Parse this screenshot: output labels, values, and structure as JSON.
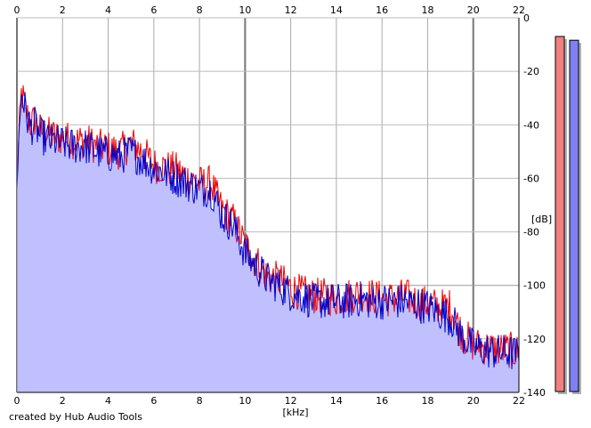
{
  "app": {
    "credit": "created by Hub Audio Tools"
  },
  "colors": {
    "left_channel": "#ee0000",
    "right_channel": "#0000cc",
    "fill": "#c0c0ff",
    "meter_left": "#f08080",
    "meter_right": "#8080f0"
  },
  "chart_data": {
    "type": "line",
    "xlabel": "[kHz]",
    "ylabel": "[dB]",
    "xlim": [
      0,
      22
    ],
    "ylim": [
      -140,
      0
    ],
    "x_ticks": [
      0,
      2,
      4,
      6,
      8,
      10,
      12,
      14,
      16,
      18,
      20,
      22
    ],
    "y_ticks": [
      0,
      -20,
      -40,
      -60,
      -80,
      -100,
      -120,
      -140
    ],
    "grid": true,
    "x": [
      0,
      0.2,
      0.4,
      0.6,
      0.8,
      1,
      1.5,
      2,
      2.5,
      3,
      3.5,
      4,
      4.5,
      5,
      5.5,
      6,
      6.5,
      7,
      7.5,
      8,
      8.5,
      9,
      9.5,
      10,
      10.5,
      11,
      11.5,
      12,
      12.5,
      13,
      13.5,
      14,
      14.5,
      15,
      15.5,
      16,
      16.5,
      17,
      17.5,
      18,
      18.5,
      19,
      19.5,
      20,
      20.5,
      21,
      21.5,
      22
    ],
    "series": [
      {
        "color": "#ee0000",
        "values": [
          -58,
          -28,
          -35,
          -40,
          -38,
          -42,
          -44,
          -45,
          -46,
          -46,
          -48,
          -49,
          -50,
          -47,
          -50,
          -55,
          -56,
          -57,
          -60,
          -62,
          -62,
          -72,
          -76,
          -85,
          -91,
          -97,
          -98,
          -101,
          -103,
          -104,
          -104,
          -105,
          -104,
          -103,
          -104,
          -105,
          -105,
          -104,
          -106,
          -107,
          -108,
          -108,
          -118,
          -122,
          -123,
          -124,
          -124,
          -125
        ]
      },
      {
        "color": "#0000cc",
        "values": [
          -60,
          -27,
          -36,
          -41,
          -40,
          -44,
          -46,
          -47,
          -48,
          -48,
          -50,
          -51,
          -52,
          -50,
          -53,
          -56,
          -58,
          -60,
          -62,
          -64,
          -64,
          -74,
          -78,
          -88,
          -93,
          -98,
          -100,
          -103,
          -104,
          -106,
          -106,
          -106,
          -106,
          -105,
          -106,
          -106,
          -106,
          -106,
          -107,
          -108,
          -110,
          -112,
          -119,
          -123,
          -124,
          -125,
          -125,
          -126
        ]
      }
    ],
    "meters": [
      {
        "channel": "left",
        "level": 0.95
      },
      {
        "channel": "right",
        "level": 0.94
      }
    ]
  }
}
